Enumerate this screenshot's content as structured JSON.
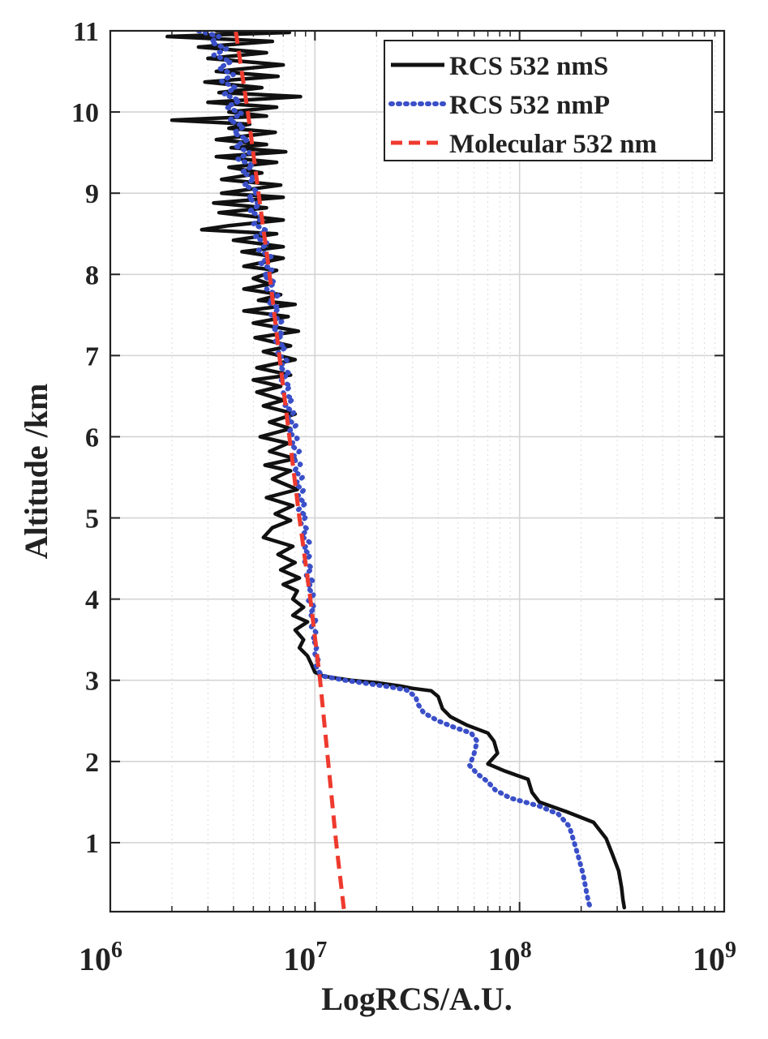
{
  "chart_data": {
    "type": "line",
    "title": "",
    "xlabel": "LogRCS/A.U.",
    "ylabel": "Altitude /km",
    "xscale": "log",
    "xlim": [
      1000000,
      1000000000
    ],
    "ylim": [
      0.15,
      11
    ],
    "grid": true,
    "legend_position": "top-right",
    "x_ticks": [
      {
        "value": 1000000,
        "base": "10",
        "exp": "6"
      },
      {
        "value": 10000000,
        "base": "10",
        "exp": "7"
      },
      {
        "value": 100000000,
        "base": "10",
        "exp": "8"
      },
      {
        "value": 1000000000,
        "base": "10",
        "exp": "9"
      }
    ],
    "y_ticks": [
      {
        "value": 1,
        "label": "1"
      },
      {
        "value": 2,
        "label": "2"
      },
      {
        "value": 3,
        "label": "3"
      },
      {
        "value": 4,
        "label": "4"
      },
      {
        "value": 5,
        "label": "5"
      },
      {
        "value": 6,
        "label": "6"
      },
      {
        "value": 7,
        "label": "7"
      },
      {
        "value": 8,
        "label": "8"
      },
      {
        "value": 9,
        "label": "9"
      },
      {
        "value": 10,
        "label": "10"
      },
      {
        "value": 11,
        "label": "11"
      }
    ],
    "series": [
      {
        "name": "RCS 532 nmS",
        "color": "#111111",
        "style": "solid",
        "points": [
          [
            3300000,
            11.0
          ],
          [
            7500000,
            10.98
          ],
          [
            1900000,
            10.93
          ],
          [
            6200000,
            10.87
          ],
          [
            2700000,
            10.8
          ],
          [
            5800000,
            10.73
          ],
          [
            3000000,
            10.66
          ],
          [
            7000000,
            10.58
          ],
          [
            3300000,
            10.5
          ],
          [
            6600000,
            10.44
          ],
          [
            2900000,
            10.37
          ],
          [
            5500000,
            10.3
          ],
          [
            3400000,
            10.24
          ],
          [
            8500000,
            10.19
          ],
          [
            3000000,
            10.12
          ],
          [
            6500000,
            10.06
          ],
          [
            3800000,
            10.0
          ],
          [
            5800000,
            9.95
          ],
          [
            2000000,
            9.9
          ],
          [
            4800000,
            9.85
          ],
          [
            3800000,
            9.8
          ],
          [
            6400000,
            9.75
          ],
          [
            3300000,
            9.66
          ],
          [
            5800000,
            9.6
          ],
          [
            3900000,
            9.56
          ],
          [
            7200000,
            9.51
          ],
          [
            3300000,
            9.45
          ],
          [
            6500000,
            9.38
          ],
          [
            3800000,
            9.32
          ],
          [
            5500000,
            9.25
          ],
          [
            3500000,
            9.17
          ],
          [
            6800000,
            9.1
          ],
          [
            3500000,
            9.0
          ],
          [
            7000000,
            8.95
          ],
          [
            3200000,
            8.88
          ],
          [
            5800000,
            8.82
          ],
          [
            3400000,
            8.76
          ],
          [
            7000000,
            8.67
          ],
          [
            3800000,
            8.6
          ],
          [
            2800000,
            8.55
          ],
          [
            6500000,
            8.5
          ],
          [
            4000000,
            8.42
          ],
          [
            7000000,
            8.34
          ],
          [
            4400000,
            8.28
          ],
          [
            7000000,
            8.2
          ],
          [
            4500000,
            8.1
          ],
          [
            6500000,
            8.05
          ],
          [
            5000000,
            7.95
          ],
          [
            6000000,
            7.88
          ],
          [
            4500000,
            7.82
          ],
          [
            6800000,
            7.75
          ],
          [
            5300000,
            7.68
          ],
          [
            8000000,
            7.63
          ],
          [
            4500000,
            7.55
          ],
          [
            7400000,
            7.48
          ],
          [
            5000000,
            7.4
          ],
          [
            8300000,
            7.3
          ],
          [
            5100000,
            7.22
          ],
          [
            7600000,
            7.12
          ],
          [
            5600000,
            7.05
          ],
          [
            8000000,
            6.95
          ],
          [
            5200000,
            6.85
          ],
          [
            7600000,
            6.76
          ],
          [
            5000000,
            6.7
          ],
          [
            6800000,
            6.62
          ],
          [
            5200000,
            6.55
          ],
          [
            7000000,
            6.45
          ],
          [
            5600000,
            6.38
          ],
          [
            8000000,
            6.28
          ],
          [
            6000000,
            6.18
          ],
          [
            7600000,
            6.1
          ],
          [
            5400000,
            6.0
          ],
          [
            7400000,
            5.92
          ],
          [
            6000000,
            5.82
          ],
          [
            8000000,
            5.73
          ],
          [
            5700000,
            5.65
          ],
          [
            7600000,
            5.58
          ],
          [
            6200000,
            5.48
          ],
          [
            8200000,
            5.35
          ],
          [
            5800000,
            5.25
          ],
          [
            7800000,
            5.15
          ],
          [
            6400000,
            5.05
          ],
          [
            7600000,
            4.97
          ],
          [
            6200000,
            4.88
          ],
          [
            5600000,
            4.76
          ],
          [
            7800000,
            4.65
          ],
          [
            6600000,
            4.55
          ],
          [
            8000000,
            4.45
          ],
          [
            6800000,
            4.36
          ],
          [
            8400000,
            4.26
          ],
          [
            7000000,
            4.18
          ],
          [
            8200000,
            4.1
          ],
          [
            7800000,
            4.0
          ],
          [
            8800000,
            3.9
          ],
          [
            7800000,
            3.8
          ],
          [
            9200000,
            3.72
          ],
          [
            8000000,
            3.62
          ],
          [
            8800000,
            3.5
          ],
          [
            8400000,
            3.4
          ],
          [
            9200000,
            3.3
          ],
          [
            9600000,
            3.2
          ],
          [
            10000000,
            3.1
          ],
          [
            11000000,
            3.05
          ],
          [
            15000000,
            3.0
          ],
          [
            20000000,
            2.97
          ],
          [
            26000000,
            2.93
          ],
          [
            30000000,
            2.9
          ],
          [
            37000000,
            2.87
          ],
          [
            40000000,
            2.8
          ],
          [
            42000000,
            2.65
          ],
          [
            46000000,
            2.55
          ],
          [
            55000000,
            2.45
          ],
          [
            70000000,
            2.35
          ],
          [
            75000000,
            2.25
          ],
          [
            78000000,
            2.1
          ],
          [
            70000000,
            1.97
          ],
          [
            85000000,
            1.88
          ],
          [
            110000000,
            1.78
          ],
          [
            115000000,
            1.62
          ],
          [
            125000000,
            1.5
          ],
          [
            170000000,
            1.38
          ],
          [
            230000000,
            1.25
          ],
          [
            265000000,
            1.05
          ],
          [
            285000000,
            0.85
          ],
          [
            305000000,
            0.65
          ],
          [
            315000000,
            0.45
          ],
          [
            320000000,
            0.3
          ],
          [
            325000000,
            0.2
          ]
        ]
      },
      {
        "name": "RCS 532 nmP",
        "color": "#3a4fc8",
        "style": "dotted",
        "points": [
          [
            2700000,
            11.0
          ],
          [
            3400000,
            10.93
          ],
          [
            3100000,
            10.86
          ],
          [
            3700000,
            10.78
          ],
          [
            3200000,
            10.7
          ],
          [
            3900000,
            10.62
          ],
          [
            3400000,
            10.54
          ],
          [
            4000000,
            10.46
          ],
          [
            3500000,
            10.38
          ],
          [
            4100000,
            10.3
          ],
          [
            3600000,
            10.22
          ],
          [
            4300000,
            10.14
          ],
          [
            3700000,
            10.06
          ],
          [
            4400000,
            9.98
          ],
          [
            3800000,
            9.9
          ],
          [
            4500000,
            9.82
          ],
          [
            4000000,
            9.74
          ],
          [
            4700000,
            9.66
          ],
          [
            4100000,
            9.58
          ],
          [
            4800000,
            9.5
          ],
          [
            4200000,
            9.42
          ],
          [
            5000000,
            9.34
          ],
          [
            4400000,
            9.26
          ],
          [
            5100000,
            9.18
          ],
          [
            4500000,
            9.1
          ],
          [
            5300000,
            9.02
          ],
          [
            4700000,
            8.94
          ],
          [
            5400000,
            8.86
          ],
          [
            4800000,
            8.78
          ],
          [
            5600000,
            8.7
          ],
          [
            5000000,
            8.62
          ],
          [
            5800000,
            8.54
          ],
          [
            5100000,
            8.46
          ],
          [
            5900000,
            8.38
          ],
          [
            5300000,
            8.3
          ],
          [
            6100000,
            8.22
          ],
          [
            5400000,
            8.14
          ],
          [
            6200000,
            8.06
          ],
          [
            5600000,
            7.98
          ],
          [
            6400000,
            7.9
          ],
          [
            5800000,
            7.82
          ],
          [
            6600000,
            7.74
          ],
          [
            5900000,
            7.66
          ],
          [
            6700000,
            7.58
          ],
          [
            6100000,
            7.5
          ],
          [
            6900000,
            7.42
          ],
          [
            6200000,
            7.34
          ],
          [
            7000000,
            7.26
          ],
          [
            6400000,
            7.18
          ],
          [
            7200000,
            7.1
          ],
          [
            6500000,
            7.02
          ],
          [
            7300000,
            6.94
          ],
          [
            6700000,
            6.86
          ],
          [
            7500000,
            6.78
          ],
          [
            6800000,
            6.7
          ],
          [
            7600000,
            6.62
          ],
          [
            7000000,
            6.54
          ],
          [
            7800000,
            6.46
          ],
          [
            7100000,
            6.38
          ],
          [
            7900000,
            6.3
          ],
          [
            7300000,
            6.22
          ],
          [
            8100000,
            6.14
          ],
          [
            7400000,
            6.06
          ],
          [
            8200000,
            5.98
          ],
          [
            7600000,
            5.9
          ],
          [
            8400000,
            5.82
          ],
          [
            7700000,
            5.74
          ],
          [
            8500000,
            5.66
          ],
          [
            7900000,
            5.58
          ],
          [
            8700000,
            5.5
          ],
          [
            8000000,
            5.42
          ],
          [
            8800000,
            5.34
          ],
          [
            8200000,
            5.26
          ],
          [
            9000000,
            5.18
          ],
          [
            8300000,
            5.1
          ],
          [
            9100000,
            5.02
          ],
          [
            8500000,
            4.94
          ],
          [
            9200000,
            4.86
          ],
          [
            8600000,
            4.78
          ],
          [
            9400000,
            4.7
          ],
          [
            8800000,
            4.62
          ],
          [
            9500000,
            4.54
          ],
          [
            8900000,
            4.46
          ],
          [
            9700000,
            4.38
          ],
          [
            9000000,
            4.3
          ],
          [
            9800000,
            4.22
          ],
          [
            9200000,
            4.14
          ],
          [
            9900000,
            4.06
          ],
          [
            9300000,
            3.98
          ],
          [
            10000000,
            3.9
          ],
          [
            9400000,
            3.82
          ],
          [
            10100000,
            3.74
          ],
          [
            9600000,
            3.66
          ],
          [
            10200000,
            3.58
          ],
          [
            9700000,
            3.5
          ],
          [
            10300000,
            3.42
          ],
          [
            9900000,
            3.34
          ],
          [
            10400000,
            3.26
          ],
          [
            10100000,
            3.18
          ],
          [
            10500000,
            3.1
          ],
          [
            11000000,
            3.05
          ],
          [
            14000000,
            3.0
          ],
          [
            18000000,
            2.96
          ],
          [
            23000000,
            2.92
          ],
          [
            28000000,
            2.88
          ],
          [
            31000000,
            2.8
          ],
          [
            32000000,
            2.7
          ],
          [
            34000000,
            2.6
          ],
          [
            40000000,
            2.5
          ],
          [
            48000000,
            2.42
          ],
          [
            58000000,
            2.35
          ],
          [
            62000000,
            2.25
          ],
          [
            60000000,
            2.1
          ],
          [
            57000000,
            1.95
          ],
          [
            62000000,
            1.85
          ],
          [
            70000000,
            1.75
          ],
          [
            76000000,
            1.65
          ],
          [
            90000000,
            1.55
          ],
          [
            125000000,
            1.45
          ],
          [
            155000000,
            1.35
          ],
          [
            175000000,
            1.2
          ],
          [
            185000000,
            1.0
          ],
          [
            195000000,
            0.8
          ],
          [
            205000000,
            0.6
          ],
          [
            212000000,
            0.4
          ],
          [
            218000000,
            0.25
          ],
          [
            225000000,
            0.18
          ]
        ]
      },
      {
        "name": "Molecular 532 nm",
        "color": "#ee3a2e",
        "style": "dashed",
        "points": [
          [
            4100000,
            11.0
          ],
          [
            4700000,
            10.0
          ],
          [
            5300000,
            9.0
          ],
          [
            6000000,
            8.0
          ],
          [
            6700000,
            7.0
          ],
          [
            7500000,
            6.0
          ],
          [
            8400000,
            5.0
          ],
          [
            9500000,
            4.0
          ],
          [
            10600000,
            3.0
          ],
          [
            11600000,
            2.0
          ],
          [
            12700000,
            1.0
          ],
          [
            13900000,
            0.15
          ]
        ]
      }
    ]
  }
}
